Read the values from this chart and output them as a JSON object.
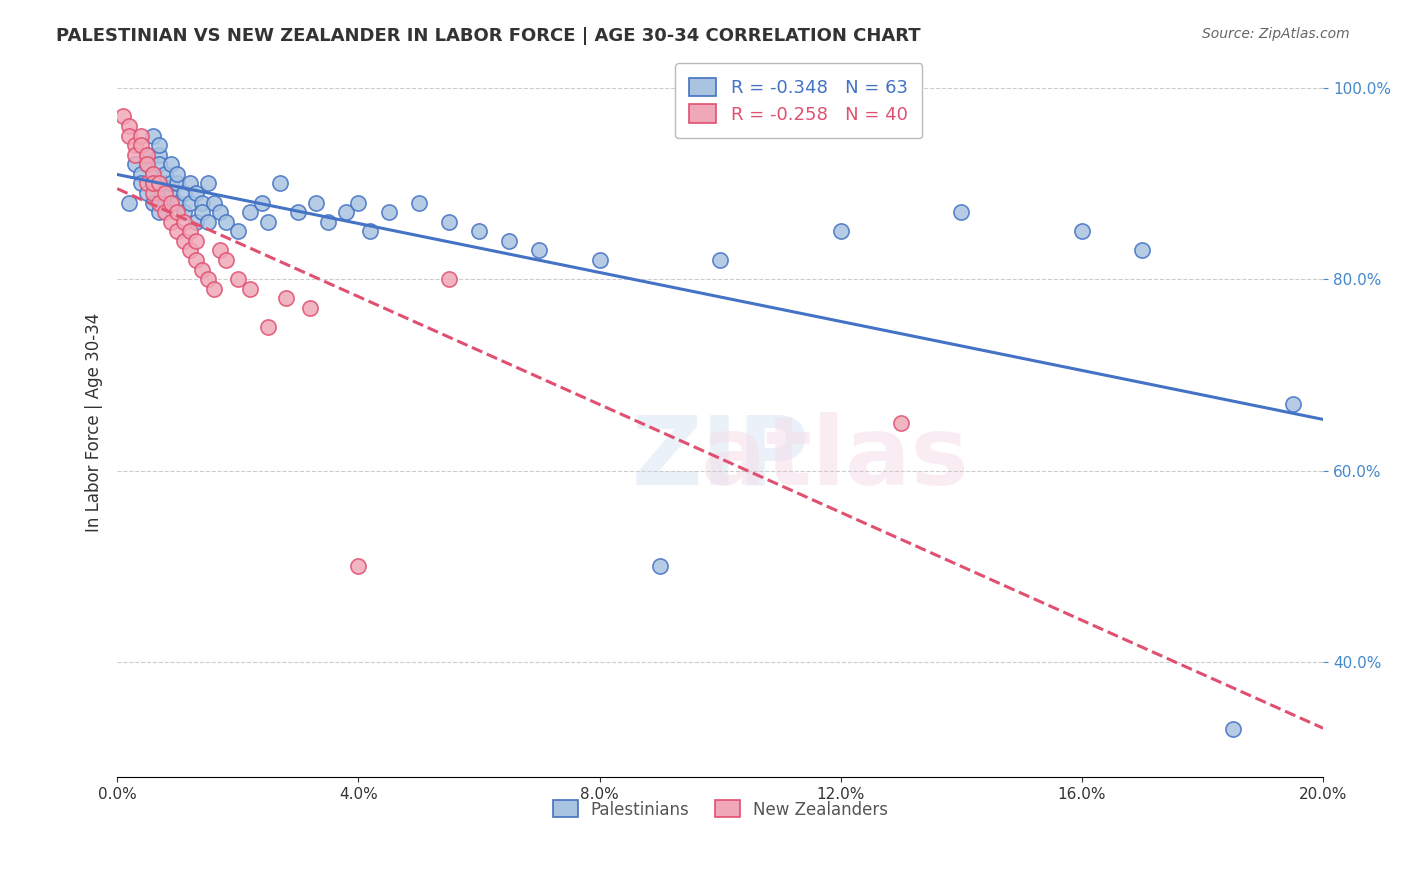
{
  "title": "PALESTINIAN VS NEW ZEALANDER IN LABOR FORCE | AGE 30-34 CORRELATION CHART",
  "source": "Source: ZipAtlas.com",
  "xlabel": "",
  "ylabel": "In Labor Force | Age 30-34",
  "xlim": [
    0.0,
    0.2
  ],
  "ylim": [
    0.28,
    1.02
  ],
  "xticks": [
    0.0,
    0.04,
    0.08,
    0.12,
    0.16,
    0.2
  ],
  "yticks": [
    0.4,
    0.6,
    0.8,
    1.0
  ],
  "ytick_labels": [
    "40.0%",
    "60.0%",
    "80.0%",
    "100.0%"
  ],
  "xtick_labels": [
    "0.0%",
    "4.0%",
    "8.0%",
    "12.0%",
    "16.0%",
    "20.0%"
  ],
  "blue_R": -0.348,
  "blue_N": 63,
  "pink_R": -0.258,
  "pink_N": 40,
  "blue_color": "#a8c4e0",
  "pink_color": "#f0a8b8",
  "blue_line_color": "#4472c4",
  "pink_line_color": "#e05070",
  "legend_blue_color": "#a8c4e0",
  "legend_pink_color": "#f0a8b8",
  "watermark": "ZIPatlas",
  "blue_x": [
    0.002,
    0.003,
    0.004,
    0.004,
    0.005,
    0.005,
    0.005,
    0.006,
    0.006,
    0.006,
    0.006,
    0.007,
    0.007,
    0.007,
    0.007,
    0.008,
    0.008,
    0.008,
    0.009,
    0.009,
    0.009,
    0.01,
    0.01,
    0.01,
    0.011,
    0.011,
    0.012,
    0.012,
    0.013,
    0.013,
    0.014,
    0.014,
    0.015,
    0.015,
    0.016,
    0.017,
    0.018,
    0.02,
    0.022,
    0.024,
    0.025,
    0.027,
    0.03,
    0.033,
    0.035,
    0.038,
    0.04,
    0.042,
    0.045,
    0.05,
    0.055,
    0.06,
    0.065,
    0.07,
    0.08,
    0.09,
    0.1,
    0.12,
    0.14,
    0.16,
    0.17,
    0.185,
    0.195
  ],
  "blue_y": [
    0.88,
    0.92,
    0.91,
    0.9,
    0.89,
    0.93,
    0.92,
    0.88,
    0.91,
    0.9,
    0.95,
    0.87,
    0.93,
    0.92,
    0.94,
    0.9,
    0.91,
    0.88,
    0.89,
    0.92,
    0.9,
    0.88,
    0.9,
    0.91,
    0.87,
    0.89,
    0.88,
    0.9,
    0.86,
    0.89,
    0.88,
    0.87,
    0.86,
    0.9,
    0.88,
    0.87,
    0.86,
    0.85,
    0.87,
    0.88,
    0.86,
    0.9,
    0.87,
    0.88,
    0.86,
    0.87,
    0.88,
    0.85,
    0.87,
    0.88,
    0.86,
    0.85,
    0.84,
    0.83,
    0.82,
    0.5,
    0.82,
    0.85,
    0.87,
    0.85,
    0.83,
    0.33,
    0.67
  ],
  "pink_x": [
    0.001,
    0.002,
    0.002,
    0.003,
    0.003,
    0.004,
    0.004,
    0.005,
    0.005,
    0.005,
    0.006,
    0.006,
    0.006,
    0.007,
    0.007,
    0.008,
    0.008,
    0.009,
    0.009,
    0.01,
    0.01,
    0.011,
    0.011,
    0.012,
    0.012,
    0.013,
    0.013,
    0.014,
    0.015,
    0.016,
    0.017,
    0.018,
    0.02,
    0.022,
    0.025,
    0.028,
    0.032,
    0.04,
    0.055,
    0.13
  ],
  "pink_y": [
    0.97,
    0.96,
    0.95,
    0.94,
    0.93,
    0.95,
    0.94,
    0.9,
    0.93,
    0.92,
    0.89,
    0.91,
    0.9,
    0.88,
    0.9,
    0.87,
    0.89,
    0.86,
    0.88,
    0.85,
    0.87,
    0.84,
    0.86,
    0.83,
    0.85,
    0.82,
    0.84,
    0.81,
    0.8,
    0.79,
    0.83,
    0.82,
    0.8,
    0.79,
    0.75,
    0.78,
    0.77,
    0.5,
    0.8,
    0.65
  ]
}
